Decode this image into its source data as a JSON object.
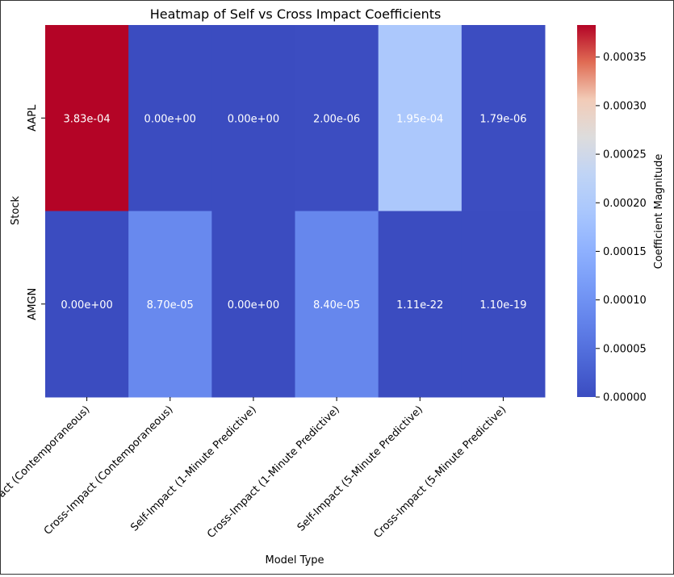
{
  "chart_data": {
    "type": "heatmap",
    "title": "Heatmap of Self vs Cross Impact Coefficients",
    "xlabel": "Model Type",
    "ylabel": "Stock",
    "columns": [
      "Self-Impact (Contemporaneous)",
      "Cross-Impact (Contemporaneous)",
      "Self-Impact (1-Minute Predictive)",
      "Cross-Impact (1-Minute Predictive)",
      "Self-Impact (5-Minute Predictive)",
      "Cross-Impact (5-Minute Predictive)"
    ],
    "rows": [
      "AAPL",
      "AMGN"
    ],
    "values": [
      [
        0.000383,
        0.0,
        0.0,
        2e-06,
        0.000195,
        1.79e-06
      ],
      [
        0.0,
        8.7e-05,
        0.0,
        8.4e-05,
        1.11e-22,
        1.1e-19
      ]
    ],
    "cell_labels": [
      [
        "3.83e-04",
        "0.00e+00",
        "0.00e+00",
        "2.00e-06",
        "1.95e-04",
        "1.79e-06"
      ],
      [
        "0.00e+00",
        "8.70e-05",
        "0.00e+00",
        "8.40e-05",
        "1.11e-22",
        "1.10e-19"
      ]
    ],
    "colormap": "coolwarm",
    "vmin": 0.0,
    "vmax": 0.000383,
    "colorbar": {
      "label": "Coefficient Magnitude",
      "ticks": [
        0.0,
        5e-05,
        0.0001,
        0.00015,
        0.0002,
        0.00025,
        0.0003,
        0.00035
      ],
      "tick_labels": [
        "0.00000",
        "0.00005",
        "0.00010",
        "0.00015",
        "0.00020",
        "0.00025",
        "0.00030",
        "0.00035"
      ]
    },
    "grid": false,
    "legend": "none"
  }
}
